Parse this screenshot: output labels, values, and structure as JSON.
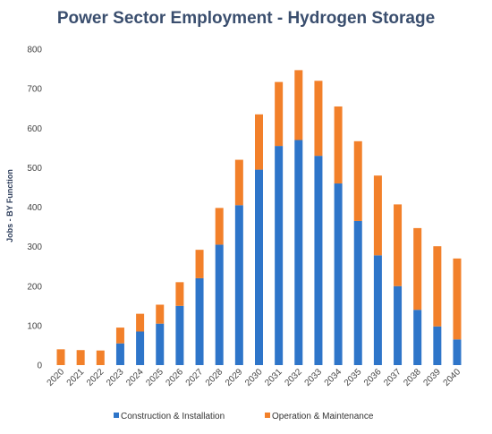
{
  "chart_data": {
    "type": "bar",
    "stacked": true,
    "title": "Power Sector Employment - Hydrogen Storage",
    "xlabel": "",
    "ylabel": "Jobs - BY Function",
    "ylim": [
      0,
      800
    ],
    "yticks": [
      0,
      100,
      200,
      300,
      400,
      500,
      600,
      700,
      800
    ],
    "grid": false,
    "legend_position": "bottom",
    "categories": [
      "2020",
      "2021",
      "2022",
      "2023",
      "2024",
      "2025",
      "2026",
      "2027",
      "2028",
      "2029",
      "2030",
      "2031",
      "2032",
      "2033",
      "2034",
      "2035",
      "2036",
      "2037",
      "2038",
      "2039",
      "2040"
    ],
    "series": [
      {
        "name": "Construction & Installation",
        "color": "#2e75c9",
        "values": [
          0,
          0,
          0,
          55,
          85,
          105,
          150,
          220,
          305,
          405,
          495,
          555,
          570,
          530,
          460,
          365,
          278,
          200,
          140,
          98,
          65
        ]
      },
      {
        "name": "Operation & Maintenance",
        "color": "#f2802a",
        "values": [
          40,
          38,
          37,
          40,
          45,
          48,
          60,
          72,
          93,
          115,
          140,
          162,
          177,
          190,
          195,
          202,
          202,
          207,
          207,
          203,
          205
        ]
      }
    ]
  }
}
